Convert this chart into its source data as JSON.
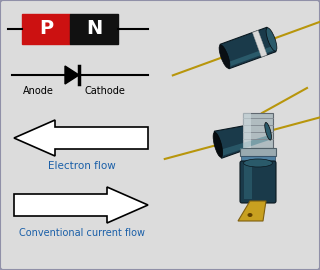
{
  "bg_color": "#dcdcdc",
  "border_color": "#9090a8",
  "p_color": "#cc1111",
  "n_color": "#111111",
  "p_label": "P",
  "n_label": "N",
  "anode_label": "Anode",
  "cathode_label": "Cathode",
  "electron_label": "Electron flow",
  "conventional_label": "Conventional current flow",
  "arrow_fill": "#ffffff",
  "arrow_edge": "#000000",
  "text_color": "#1a5fa8",
  "diode_dark": "#1a3a4a",
  "diode_mid": "#2a5a6a",
  "diode_light": "#3a7a8a",
  "diode_ring": "#e0e0e0",
  "diode_lead": "#b8960c",
  "diode_end_dark": "#0a0a0a",
  "metal_light": "#c8d4d8",
  "metal_mid": "#8a9aa0",
  "metal_dark": "#4a5a60"
}
